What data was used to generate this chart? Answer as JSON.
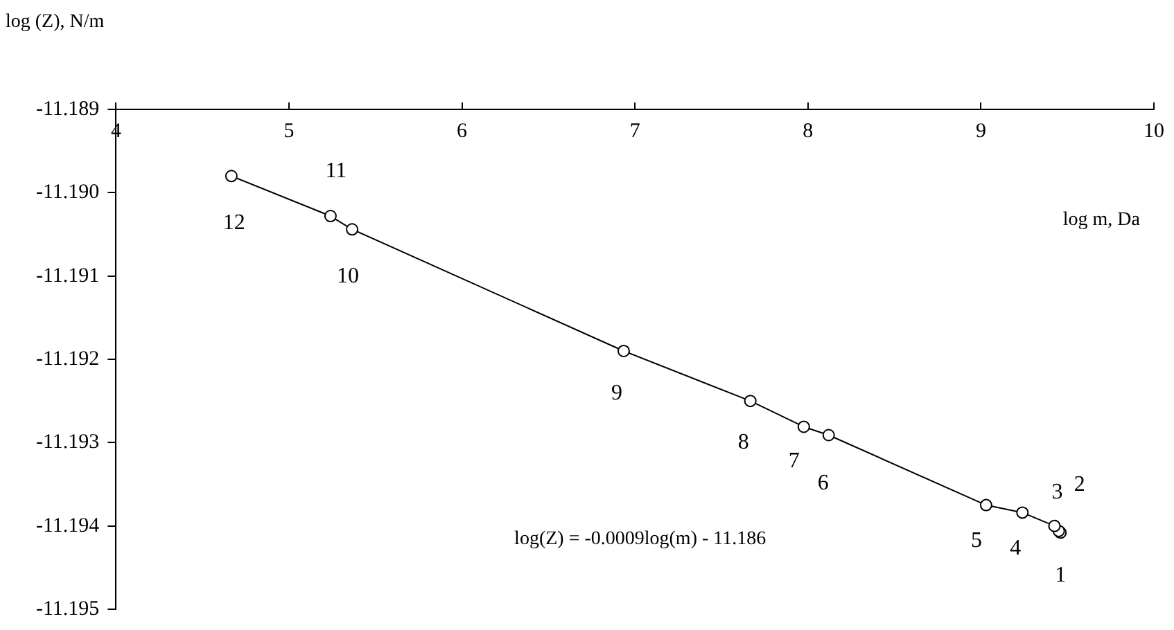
{
  "chart_data": {
    "type": "line",
    "xlabel": "log m, Da",
    "ylabel": "log (Z), N/m",
    "x": [
      9.46,
      9.45,
      9.425,
      9.24,
      9.03,
      8.12,
      7.976,
      7.667,
      6.935,
      5.365,
      5.24,
      4.667
    ],
    "series": [
      {
        "color": "#000000",
        "values": [
          -11.19408,
          -11.19406,
          -11.194,
          -11.19384,
          -11.19375,
          -11.19291,
          -11.19281,
          -11.1925,
          -11.1919,
          -11.19044,
          -11.19028,
          -11.1898
        ],
        "name": null
      }
    ],
    "xlim": [
      4,
      10
    ],
    "xticks": [
      4,
      5,
      6,
      7,
      8,
      9,
      10
    ],
    "ylim": [
      -11.195,
      -11.189
    ],
    "yticks": [
      {
        "value": -11.195,
        "label": "-11.195"
      },
      {
        "value": -11.194,
        "label": "-11.194"
      },
      {
        "value": -11.193,
        "label": "-11.193"
      },
      {
        "value": -11.192,
        "label": "-11.192"
      },
      {
        "value": -11.191,
        "label": "-11.191"
      },
      {
        "value": -11.19,
        "label": "-11.190"
      },
      {
        "value": -11.189,
        "label": "-11.189"
      }
    ],
    "grid": false,
    "legend": false,
    "marker": "circle",
    "line_style": "solid",
    "annotations": [
      "log(Z) = -0.0009log(m) - 11.186",
      {
        "text": "1",
        "x": 9.46,
        "y": -11.19408
      },
      {
        "text": "2",
        "x": 9.45,
        "y": -11.19406
      },
      {
        "text": "3",
        "x": 9.425,
        "y": -11.194
      },
      {
        "text": "4",
        "x": 9.24,
        "y": -11.19384
      },
      {
        "text": "5",
        "x": 9.03,
        "y": -11.19375
      },
      {
        "text": "6",
        "x": 8.12,
        "y": -11.19291
      },
      {
        "text": "7",
        "x": 7.976,
        "y": -11.19281
      },
      {
        "text": "8",
        "x": 7.667,
        "y": -11.1925
      },
      {
        "text": "9",
        "x": 6.935,
        "y": -11.1919
      },
      {
        "text": "10",
        "x": 5.365,
        "y": -11.19044
      },
      {
        "text": "11",
        "x": 5.24,
        "y": -11.19028
      },
      {
        "text": "12",
        "x": 4.667,
        "y": -11.1898
      }
    ]
  }
}
